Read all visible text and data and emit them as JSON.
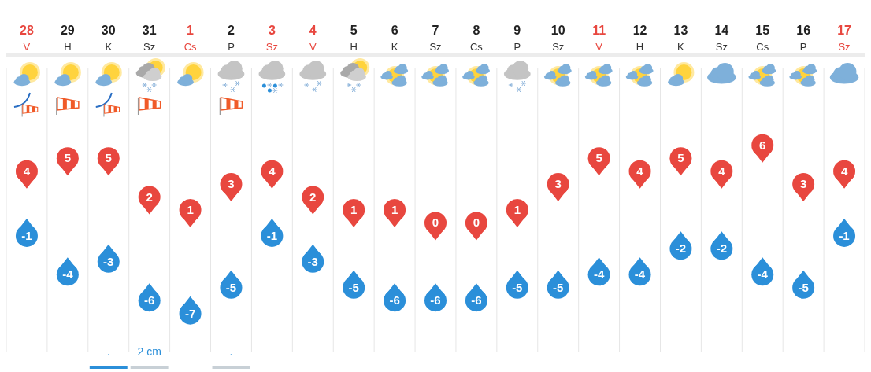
{
  "chart_data": {
    "type": "scatter",
    "categories": [
      "28 V",
      "29 H",
      "30 K",
      "31 Sz",
      "1 Cs",
      "2 P",
      "3 Sz",
      "4 V",
      "5 H",
      "6 K",
      "7 Sz",
      "8 Cs",
      "9 P",
      "10 Sz",
      "11 V",
      "12 H",
      "13 K",
      "14 Sz",
      "15 Cs",
      "16 P",
      "17 Sz"
    ],
    "series": [
      {
        "color": "#e8473f",
        "values": [
          4,
          5,
          5,
          2,
          1,
          3,
          4,
          2,
          1,
          1,
          0,
          0,
          1,
          3,
          5,
          4,
          5,
          4,
          6,
          3,
          4
        ]
      },
      {
        "color": "#2b8fd9",
        "values": [
          -1,
          -4,
          -3,
          -6,
          -7,
          -5,
          -1,
          -3,
          -5,
          -6,
          -6,
          -6,
          -5,
          -5,
          -4,
          -4,
          -2,
          -2,
          -4,
          -5,
          -1
        ]
      }
    ],
    "data_labels": true,
    "grid": "x",
    "annotations": [
      ".",
      "2 cm",
      "."
    ]
  }
}
